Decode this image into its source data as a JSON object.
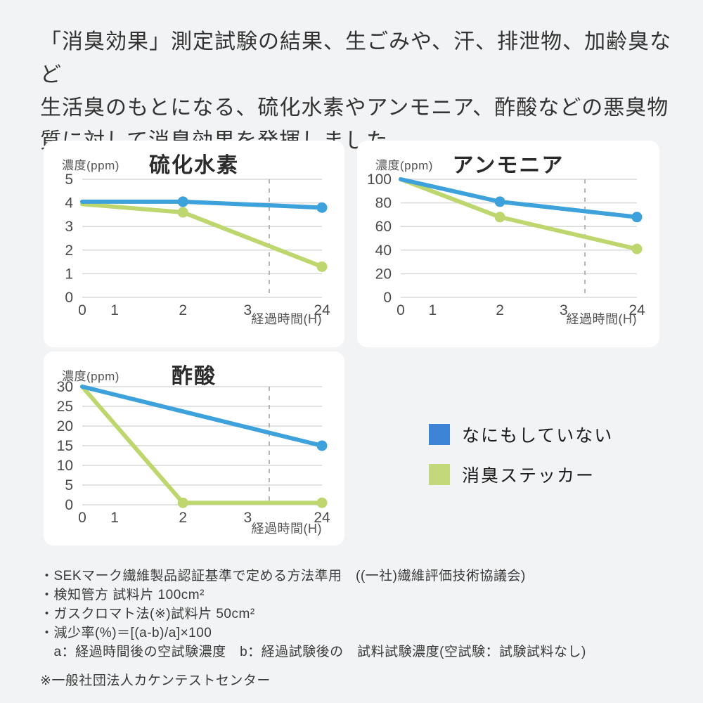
{
  "page": {
    "background": "#f2f3f4",
    "card_background": "#ffffff"
  },
  "header": {
    "lines": [
      "「消臭効果」測定試験の結果、生ごみや、汗、排泄物、加齢臭など",
      "生活臭のもとになる、硫化水素やアンモニア、酢酸などの悪臭物",
      "質に対して消臭効果を発揮しました。"
    ]
  },
  "legend": {
    "items": [
      {
        "label": "なにもしていない",
        "color": "#3e84d6"
      },
      {
        "label": "消臭ステッカー",
        "color": "#c3d87b"
      }
    ]
  },
  "chart_data": [
    {
      "type": "line",
      "title": "硫化水素",
      "ylabel": "濃度(ppm)",
      "xlabel": "経過時間(H)",
      "x_tick_labels": [
        "0",
        "1",
        "2",
        "3",
        "24"
      ],
      "x_tick_values": [
        0,
        1,
        2,
        3,
        24
      ],
      "x_axis_note": "axis break between 3H and 24H marked by vertical dashed line",
      "ylim": [
        0,
        5
      ],
      "y_ticks": [
        0,
        1,
        2,
        3,
        4,
        5
      ],
      "grid": true,
      "dashed_guide_fraction": 0.78,
      "series": [
        {
          "name": "なにもしていない",
          "color": "#3da1dc",
          "x": [
            0,
            2,
            24
          ],
          "y": [
            4.05,
            4.05,
            3.8
          ],
          "dots": [
            false,
            true,
            true
          ]
        },
        {
          "name": "消臭ステッカー",
          "color": "#bdd66d",
          "x": [
            0,
            2,
            24
          ],
          "y": [
            3.95,
            3.6,
            1.3
          ],
          "dots": [
            false,
            true,
            true
          ]
        }
      ]
    },
    {
      "type": "line",
      "title": "アンモニア",
      "ylabel": "濃度(ppm)",
      "xlabel": "経過時間(H)",
      "x_tick_labels": [
        "0",
        "1",
        "2",
        "3",
        "24"
      ],
      "x_tick_values": [
        0,
        1,
        2,
        3,
        24
      ],
      "x_axis_note": "axis break between 3H and 24H marked by vertical dashed line",
      "ylim": [
        0,
        100
      ],
      "y_ticks": [
        0,
        20,
        40,
        60,
        80,
        100
      ],
      "grid": true,
      "dashed_guide_fraction": 0.78,
      "series": [
        {
          "name": "なにもしていない",
          "color": "#3da1dc",
          "x": [
            0,
            2,
            24
          ],
          "y": [
            100,
            81,
            68
          ],
          "dots": [
            false,
            true,
            true
          ]
        },
        {
          "name": "消臭ステッカー",
          "color": "#bdd66d",
          "x": [
            0,
            2,
            24
          ],
          "y": [
            100,
            68,
            41
          ],
          "dots": [
            false,
            true,
            true
          ]
        }
      ]
    },
    {
      "type": "line",
      "title": "酢酸",
      "ylabel": "濃度(ppm)",
      "xlabel": "経過時間(H)",
      "x_tick_labels": [
        "0",
        "1",
        "2",
        "3",
        "24"
      ],
      "x_tick_values": [
        0,
        1,
        2,
        3,
        24
      ],
      "x_axis_note": "axis break between 3H and 24H marked by vertical dashed line",
      "ylim": [
        0,
        30
      ],
      "y_ticks": [
        0,
        5,
        10,
        15,
        20,
        25,
        30
      ],
      "grid": true,
      "dashed_guide_fraction": 0.78,
      "series": [
        {
          "name": "なにもしていない",
          "color": "#3da1dc",
          "x": [
            0,
            24
          ],
          "y": [
            30,
            15
          ],
          "dots": [
            false,
            true
          ]
        },
        {
          "name": "消臭ステッカー",
          "color": "#bdd66d",
          "x": [
            0,
            2,
            24
          ],
          "y": [
            30,
            0.5,
            0.5
          ],
          "dots": [
            false,
            true,
            true
          ]
        }
      ]
    }
  ],
  "footnotes": {
    "lines": [
      "・SEKマーク繊維製品認証基準で定める方法準用　((一社)繊維評価技術協議会)",
      "・検知管方 試料片 100cm²",
      "・ガスクロマト法(※)試料片 50cm²",
      "・減少率(%)＝[(a-b)/a]×100",
      "　a：経過時間後の空試験濃度　b：経過試験後の　試料試験濃度(空試験：試験試料なし)"
    ],
    "note": "※一般社団法人カケンテストセンター"
  }
}
